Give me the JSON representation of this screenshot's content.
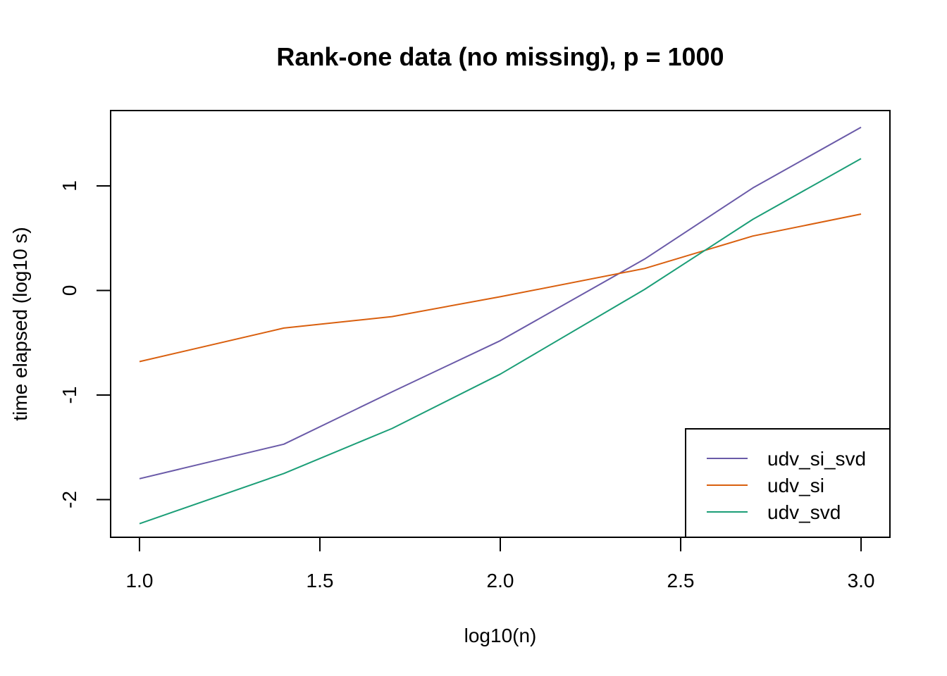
{
  "chart_data": {
    "type": "line",
    "title": "Rank-one data (no missing), p = 1000",
    "xlabel": "log10(n)",
    "ylabel": "time elapsed (log10 s)",
    "xlim": [
      0.92,
      3.08
    ],
    "ylim": [
      -2.36,
      1.72
    ],
    "xticks": [
      1.0,
      1.5,
      2.0,
      2.5,
      3.0
    ],
    "xtick_labels": [
      "1.0",
      "1.5",
      "2.0",
      "2.5",
      "3.0"
    ],
    "yticks": [
      -2,
      -1,
      0,
      1
    ],
    "ytick_labels": [
      "-2",
      "-1",
      "0",
      "1"
    ],
    "grid": false,
    "legend_position": "bottom-right",
    "x": [
      1.0,
      1.4,
      1.7,
      2.0,
      2.4,
      2.7,
      3.0
    ],
    "series": [
      {
        "name": "udv_si_svd",
        "color": "#6a5aa8",
        "values": [
          -1.8,
          -1.47,
          -0.97,
          -0.48,
          0.3,
          0.98,
          1.56
        ]
      },
      {
        "name": "udv_si",
        "color": "#d95f0e",
        "values": [
          -0.68,
          -0.36,
          -0.25,
          -0.06,
          0.21,
          0.52,
          0.73
        ]
      },
      {
        "name": "udv_svd",
        "color": "#1b9e77",
        "values": [
          -2.23,
          -1.75,
          -1.32,
          -0.8,
          0.01,
          0.68,
          1.26
        ]
      }
    ]
  }
}
